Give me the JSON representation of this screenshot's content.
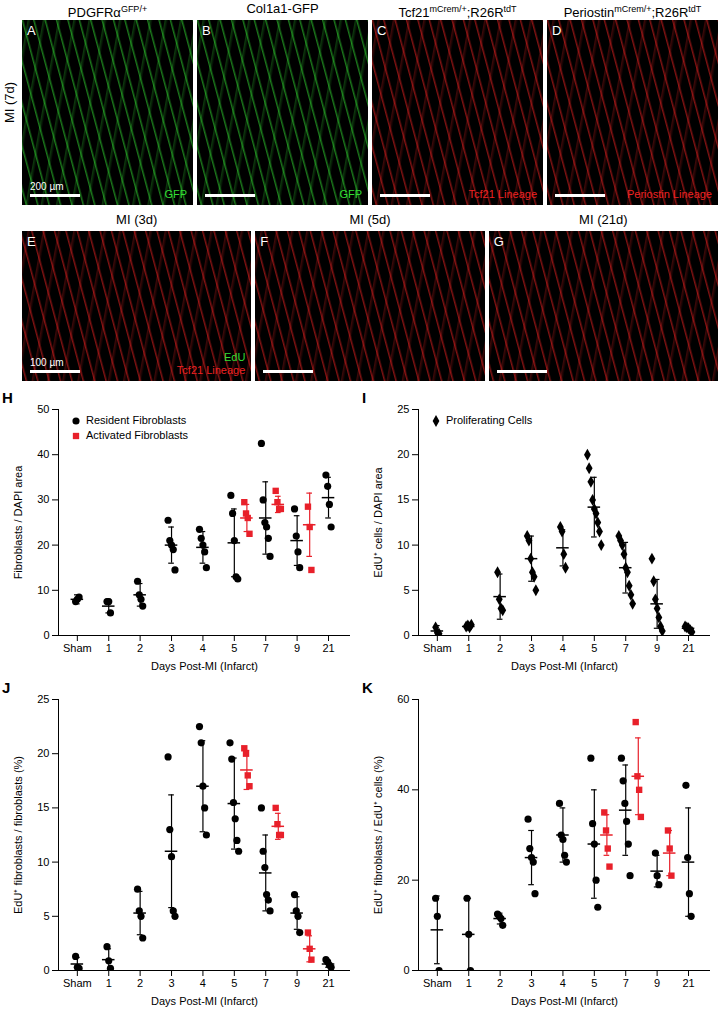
{
  "image_rows": [
    {
      "label": "MI (7d)",
      "panels": [
        {
          "panel": "A",
          "color": "#33dd33",
          "title": [
            {
              "text": "PDGFRα"
            },
            {
              "text": "GFP/+",
              "sup": true
            }
          ],
          "labels": [
            {
              "text": "GFP",
              "color": "#33dd33"
            }
          ],
          "scale_bar": "200 µm"
        },
        {
          "panel": "B",
          "color": "#33dd33",
          "title": [
            {
              "text": "Col1a1-GFP"
            }
          ],
          "labels": [
            {
              "text": "GFP",
              "color": "#33dd33"
            }
          ]
        },
        {
          "panel": "C",
          "color": "#ee2222",
          "title": [
            {
              "text": "Tcf21"
            },
            {
              "text": "mCrem/+",
              "sup": true
            },
            {
              "text": ";R26R"
            },
            {
              "text": "tdT",
              "sup": true
            }
          ],
          "labels": [
            {
              "text": "Tcf21 Lineage",
              "color": "#ee2222"
            }
          ]
        },
        {
          "panel": "D",
          "color": "#ee2222",
          "title": [
            {
              "text": "Periostin"
            },
            {
              "text": "mCrem/+",
              "sup": true
            },
            {
              "text": ";R26R"
            },
            {
              "text": "tdT",
              "sup": true
            }
          ],
          "labels": [
            {
              "text": "Periostin Lineage",
              "color": "#ee2222"
            }
          ]
        }
      ]
    },
    {
      "panels": [
        {
          "panel": "E",
          "color": "#ee2222",
          "title": [
            {
              "text": "MI (3d)"
            }
          ],
          "labels": [
            {
              "text": "EdU",
              "color": "#33dd33"
            },
            {
              "text": "Tcf21 Lineage",
              "color": "#ee2222"
            }
          ],
          "scale_bar": "100 µm"
        },
        {
          "panel": "F",
          "color": "#ee2222",
          "title": [
            {
              "text": "MI (5d)"
            }
          ],
          "labels": []
        },
        {
          "panel": "G",
          "color": "#ee2222",
          "title": [
            {
              "text": "MI (21d)"
            }
          ],
          "labels": []
        }
      ]
    }
  ],
  "chart_data": [
    {
      "type": "scatter",
      "title": "H",
      "x_label": "Days Post-MI (Infarct)",
      "y_label": "Fibroblasts / DAPI area",
      "categories": [
        "Sham",
        "1",
        "2",
        "3",
        "4",
        "5",
        "7",
        "9",
        "21"
      ],
      "ylim": [
        0,
        50
      ],
      "yticks": [
        0,
        10,
        20,
        30,
        40,
        50
      ],
      "legend": "top-left",
      "series": [
        {
          "name": "Resident Fibroblasts",
          "color": "#000000",
          "marker": "circle",
          "values": [
            [
              7.5,
              8,
              8.5
            ],
            [
              7.5,
              7.5,
              5
            ],
            [
              12,
              9,
              8,
              6.5
            ],
            [
              25.5,
              21,
              20,
              19,
              14.5
            ],
            [
              23.5,
              21.5,
              20,
              18.5,
              15
            ],
            [
              31,
              27,
              21,
              13,
              12.5
            ],
            [
              42.5,
              30,
              25,
              24,
              21.5,
              17.5
            ],
            [
              28,
              22,
              18.5,
              15
            ],
            [
              35.5,
              33,
              29,
              24
            ]
          ],
          "mean": [
            8,
            6.5,
            9,
            20,
            19.5,
            20.5,
            26,
            21,
            30.5
          ],
          "error": [
            1,
            1.5,
            2.5,
            4,
            3.5,
            7.5,
            8,
            5.5,
            4.5
          ]
        },
        {
          "name": "Activated Fibroblasts",
          "color": "#e8202a",
          "marker": "square",
          "values": [
            null,
            null,
            null,
            null,
            null,
            [
              29.5,
              27,
              26,
              22.5
            ],
            [
              32,
              29.5,
              28,
              28
            ],
            [
              28.5,
              24,
              14.5
            ],
            null
          ],
          "mean": [
            null,
            null,
            null,
            null,
            null,
            26,
            29,
            24.5,
            null
          ],
          "error": [
            null,
            null,
            null,
            null,
            null,
            3,
            1.8,
            7,
            null
          ]
        }
      ]
    },
    {
      "type": "scatter",
      "title": "I",
      "x_label": "Days Post-MI (Infarct)",
      "y_label": "EdU⁺ cells / DAPI area",
      "categories": [
        "Sham",
        "1",
        "2",
        "3",
        "4",
        "5",
        "7",
        "9",
        "21"
      ],
      "ylim": [
        0,
        25
      ],
      "yticks": [
        0,
        5,
        10,
        15,
        20,
        25
      ],
      "legend": "top-left",
      "series": [
        {
          "name": "Proliferating Cells",
          "color": "#000000",
          "marker": "diamond",
          "values": [
            [
              0.9,
              0.3,
              0.2
            ],
            [
              1,
              1.1,
              0.9,
              1.2
            ],
            [
              7,
              4,
              3,
              2.8
            ],
            [
              11,
              10.5,
              8.5,
              7,
              6.5,
              5
            ],
            [
              12,
              11.5,
              9,
              7.5
            ],
            [
              20,
              18.5,
              17,
              15,
              14,
              13.5,
              12.5,
              11.5,
              10
            ],
            [
              11,
              10.5,
              10,
              9,
              7.5,
              7,
              5.5,
              4.5,
              3.5
            ],
            [
              8.5,
              6,
              4,
              3,
              2,
              1,
              0.5
            ],
            [
              1,
              0.9,
              0.8,
              0.6,
              0.4
            ]
          ],
          "mean": [
            0.5,
            1,
            4.3,
            8.5,
            9.7,
            14.2,
            7.5,
            3.5,
            0.8
          ],
          "error": [
            0.6,
            0.2,
            2.5,
            2.5,
            2,
            3.3,
            2.8,
            2.7,
            0.2
          ]
        }
      ]
    },
    {
      "type": "scatter",
      "title": "J",
      "x_label": "Days Post-MI (Infarct)",
      "y_label": "EdU⁺ fibroblasts / fibroblasts (%)",
      "categories": [
        "Sham",
        "1",
        "2",
        "3",
        "4",
        "5",
        "7",
        "9",
        "21"
      ],
      "ylim": [
        0,
        25
      ],
      "yticks": [
        0,
        5,
        10,
        15,
        20,
        25
      ],
      "series": [
        {
          "color": "#000000",
          "marker": "circle",
          "values": [
            [
              1.3,
              0.3,
              0.2
            ],
            [
              2.2,
              0.9,
              0.2
            ],
            [
              7.5,
              5.5,
              5,
              3
            ],
            [
              19.7,
              13,
              10.5,
              5.5,
              5
            ],
            [
              22.5,
              21,
              17,
              15,
              12.5
            ],
            [
              21,
              19.5,
              15.5,
              14,
              12,
              11
            ],
            [
              15,
              11,
              9.5,
              7,
              6.5,
              5.5
            ],
            [
              7,
              5.5,
              5,
              3.5
            ],
            [
              1,
              0.8,
              0.5,
              0.3
            ]
          ],
          "mean": [
            0.6,
            1,
            5.3,
            11,
            17,
            15.4,
            9,
            5.3,
            0.6
          ],
          "error": [
            0.6,
            1,
            2,
            5.2,
            4.2,
            4.2,
            3.5,
            1.5,
            0.3
          ]
        },
        {
          "color": "#e8202a",
          "marker": "square",
          "values": [
            null,
            null,
            null,
            null,
            null,
            [
              20.5,
              20,
              18,
              17
            ],
            [
              15,
              13.5,
              12.5,
              12.5
            ],
            [
              3.5,
              2,
              1
            ],
            null
          ],
          "mean": [
            null,
            null,
            null,
            null,
            null,
            18.5,
            13.3,
            2,
            null
          ],
          "error": [
            null,
            null,
            null,
            null,
            null,
            1.8,
            1.2,
            1.2,
            null
          ]
        }
      ]
    },
    {
      "type": "scatter",
      "title": "K",
      "x_label": "Days Post-MI (Infarct)",
      "y_label": "EdU⁺ fibroblasts / EdU⁺ cells (%)",
      "categories": [
        "Sham",
        "1",
        "2",
        "3",
        "4",
        "5",
        "7",
        "9",
        "21"
      ],
      "ylim": [
        0,
        60
      ],
      "yticks": [
        0,
        20,
        40,
        60
      ],
      "series": [
        {
          "color": "#000000",
          "marker": "circle",
          "values": [
            [
              16,
              12,
              0
            ],
            [
              16,
              8,
              0
            ],
            [
              12.5,
              12,
              11.5,
              10
            ],
            [
              33.5,
              27,
              25,
              24,
              17
            ],
            [
              37,
              30,
              29,
              25.5,
              24
            ],
            [
              47,
              32.5,
              28,
              20,
              14
            ],
            [
              47,
              42,
              37,
              33,
              28,
              21
            ],
            [
              26,
              21,
              19
            ],
            [
              41,
              25,
              17,
              12
            ]
          ],
          "mean": [
            9,
            8,
            11.5,
            25,
            30,
            28,
            35.5,
            22,
            24
          ],
          "error": [
            7.5,
            8,
            1.2,
            6,
            6,
            12,
            10,
            3.5,
            12
          ]
        },
        {
          "color": "#e8202a",
          "marker": "square",
          "values": [
            null,
            null,
            null,
            null,
            null,
            [
              35,
              31,
              27,
              23
            ],
            [
              55,
              43,
              40,
              34
            ],
            [
              31,
              27,
              21
            ],
            null
          ],
          "mean": [
            null,
            null,
            null,
            null,
            null,
            30,
            43,
            26,
            null
          ],
          "error": [
            null,
            null,
            null,
            null,
            null,
            4.5,
            8.5,
            5,
            null
          ]
        }
      ]
    }
  ]
}
